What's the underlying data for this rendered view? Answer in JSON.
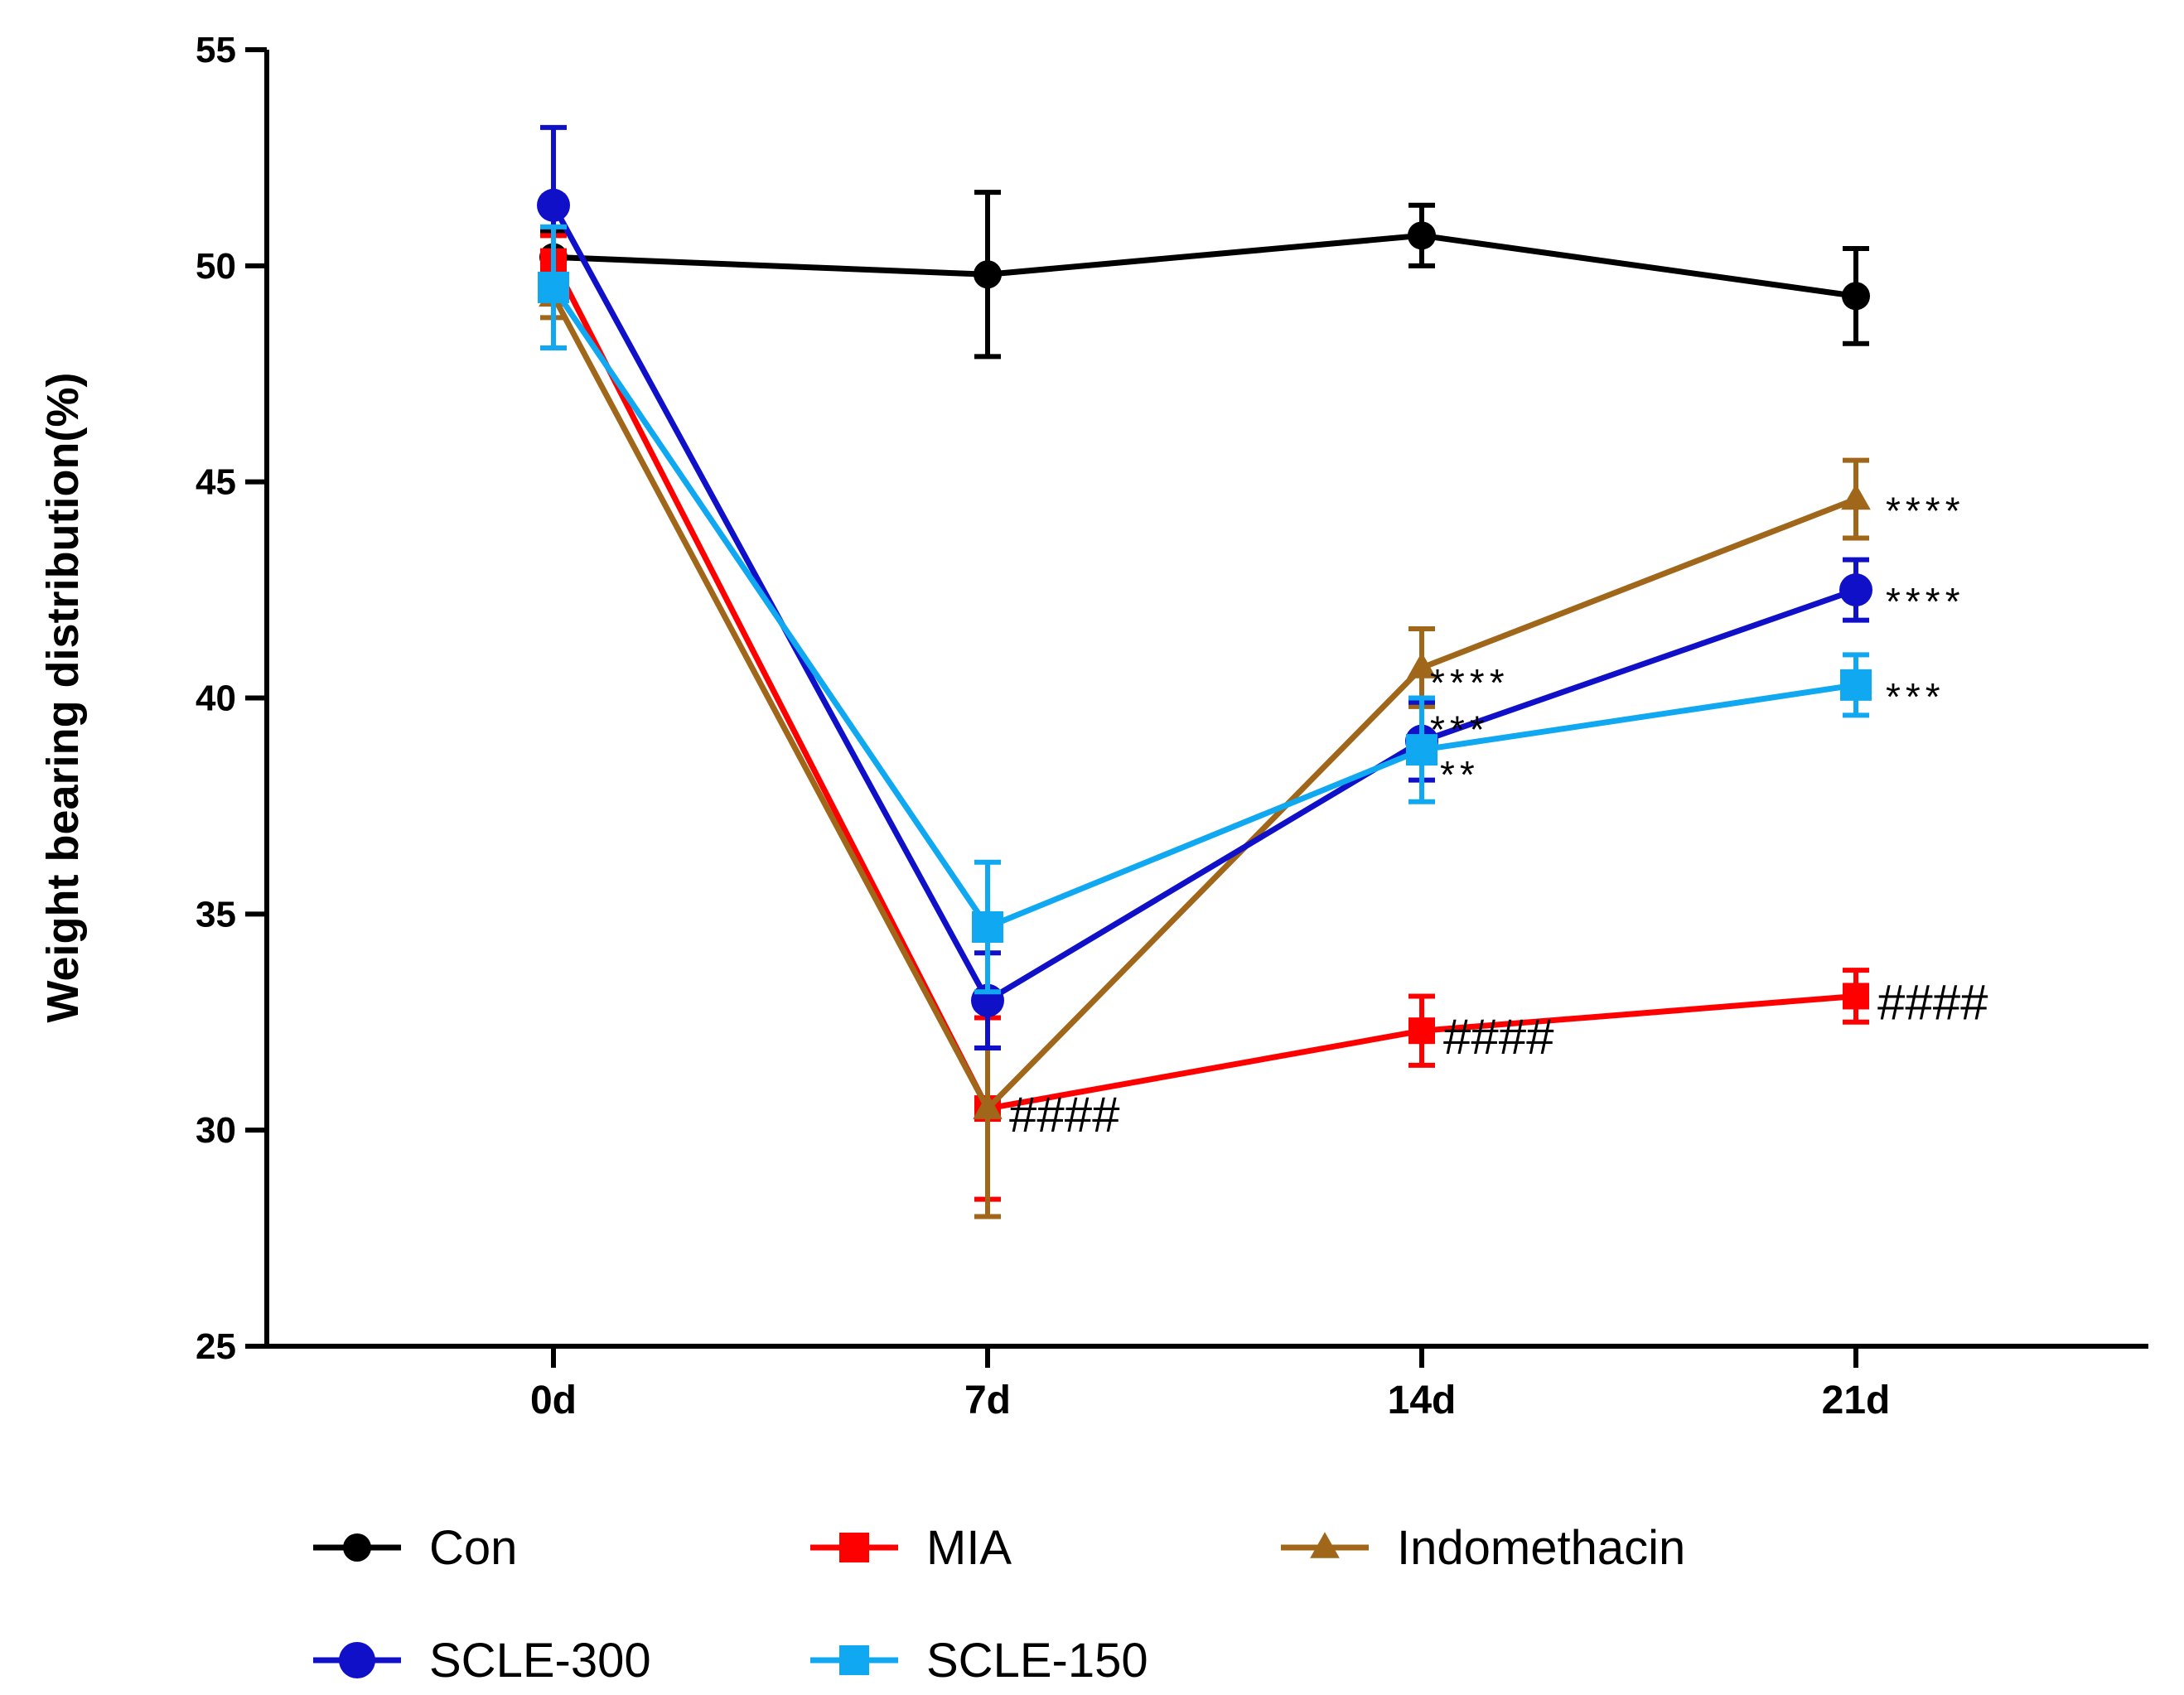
{
  "chart_data": {
    "type": "line",
    "title": "",
    "xlabel": "",
    "ylabel": "Weight bearing distribution(%)",
    "categories": [
      "0d",
      "7d",
      "14d",
      "21d"
    ],
    "ylim": [
      25,
      55
    ],
    "yticks": [
      25,
      30,
      35,
      40,
      45,
      50,
      55
    ],
    "grid": false,
    "legend_position": "bottom",
    "series": [
      {
        "name": "Con",
        "color": "#000000",
        "marker": "circle",
        "values": [
          50.2,
          49.8,
          50.7,
          49.3
        ],
        "errors": [
          0.6,
          1.9,
          0.7,
          1.1
        ],
        "annotations": [
          "",
          "",
          "",
          ""
        ]
      },
      {
        "name": "MIA",
        "color": "#FF0000",
        "marker": "square",
        "values": [
          50.1,
          30.5,
          32.3,
          33.1
        ],
        "errors": [
          0.6,
          2.1,
          0.8,
          0.6
        ],
        "annotations": [
          "",
          "####",
          "####",
          "####"
        ]
      },
      {
        "name": "Indomethacin",
        "color": "#A0661A",
        "marker": "triangle",
        "values": [
          49.3,
          30.5,
          40.7,
          44.6
        ],
        "errors": [
          0.5,
          2.5,
          0.9,
          0.9
        ],
        "annotations": [
          "",
          "",
          "****",
          "****"
        ]
      },
      {
        "name": "SCLE-300",
        "color": "#1010C8",
        "marker": "circle",
        "values": [
          51.4,
          33.0,
          39.0,
          42.5
        ],
        "errors": [
          1.8,
          1.1,
          0.9,
          0.7
        ],
        "annotations": [
          "",
          "",
          "***",
          "****"
        ]
      },
      {
        "name": "SCLE-150",
        "color": "#10A8F0",
        "marker": "square",
        "values": [
          49.5,
          34.7,
          38.8,
          40.3
        ],
        "errors": [
          1.4,
          1.5,
          1.2,
          0.7
        ],
        "annotations": [
          "",
          "",
          "**",
          "***"
        ]
      }
    ]
  }
}
